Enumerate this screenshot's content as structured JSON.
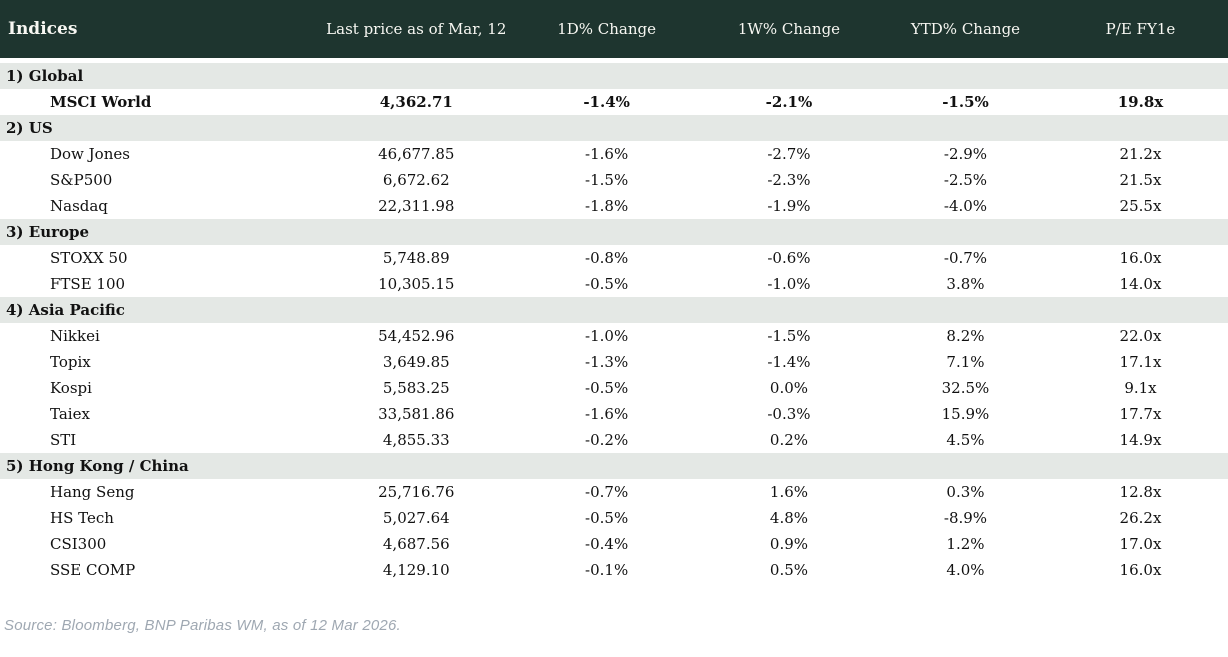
{
  "header": {
    "title": "Indices",
    "columns": [
      "Last price as of Mar, 12",
      "1D% Change",
      "1W% Change",
      "YTD% Change",
      "P/E FY1e"
    ]
  },
  "sections": [
    {
      "label": "1) Global",
      "rows": [
        {
          "name": "MSCI World",
          "bold": true,
          "price": "4,362.71",
          "d1": {
            "v": "-1.4%",
            "c": "neg"
          },
          "w1": {
            "v": "-2.1%",
            "c": "neg"
          },
          "ytd": {
            "v": "-1.5%",
            "c": "neg"
          },
          "pe": "19.8x"
        }
      ]
    },
    {
      "label": "2) US",
      "rows": [
        {
          "name": "Dow Jones",
          "bold": false,
          "price": "46,677.85",
          "d1": {
            "v": "-1.6%",
            "c": "neg"
          },
          "w1": {
            "v": "-2.7%",
            "c": "neg"
          },
          "ytd": {
            "v": "-2.9%",
            "c": "neg"
          },
          "pe": "21.2x"
        },
        {
          "name": "S&P500",
          "bold": false,
          "price": "6,672.62",
          "d1": {
            "v": "-1.5%",
            "c": "neg"
          },
          "w1": {
            "v": "-2.3%",
            "c": "neg"
          },
          "ytd": {
            "v": "-2.5%",
            "c": "neg"
          },
          "pe": "21.5x"
        },
        {
          "name": "Nasdaq",
          "bold": false,
          "price": "22,311.98",
          "d1": {
            "v": "-1.8%",
            "c": "neg"
          },
          "w1": {
            "v": "-1.9%",
            "c": "neg"
          },
          "ytd": {
            "v": "-4.0%",
            "c": "neg"
          },
          "pe": "25.5x"
        }
      ]
    },
    {
      "label": "3) Europe",
      "rows": [
        {
          "name": "STOXX 50",
          "bold": false,
          "price": "5,748.89",
          "d1": {
            "v": "-0.8%",
            "c": "neg"
          },
          "w1": {
            "v": "-0.6%",
            "c": "neg"
          },
          "ytd": {
            "v": "-0.7%",
            "c": "neg"
          },
          "pe": "16.0x"
        },
        {
          "name": "FTSE 100",
          "bold": false,
          "price": "10,305.15",
          "d1": {
            "v": "-0.5%",
            "c": "neg"
          },
          "w1": {
            "v": "-1.0%",
            "c": "neg"
          },
          "ytd": {
            "v": "3.8%",
            "c": "pos"
          },
          "pe": "14.0x"
        }
      ]
    },
    {
      "label": "4) Asia Pacific",
      "rows": [
        {
          "name": "Nikkei",
          "bold": false,
          "price": "54,452.96",
          "d1": {
            "v": "-1.0%",
            "c": "neg"
          },
          "w1": {
            "v": "-1.5%",
            "c": "neg"
          },
          "ytd": {
            "v": "8.2%",
            "c": "pos"
          },
          "pe": "22.0x"
        },
        {
          "name": "Topix",
          "bold": false,
          "price": "3,649.85",
          "d1": {
            "v": "-1.3%",
            "c": "neg"
          },
          "w1": {
            "v": "-1.4%",
            "c": "neg"
          },
          "ytd": {
            "v": "7.1%",
            "c": "pos"
          },
          "pe": "17.1x"
        },
        {
          "name": "Kospi",
          "bold": false,
          "price": "5,583.25",
          "d1": {
            "v": "-0.5%",
            "c": "neg"
          },
          "w1": {
            "v": "0.0%",
            "c": "neg"
          },
          "ytd": {
            "v": "32.5%",
            "c": "pos"
          },
          "pe": "9.1x"
        },
        {
          "name": "Taiex",
          "bold": false,
          "price": "33,581.86",
          "d1": {
            "v": "-1.6%",
            "c": "neg"
          },
          "w1": {
            "v": "-0.3%",
            "c": "neg"
          },
          "ytd": {
            "v": "15.9%",
            "c": "pos"
          },
          "pe": "17.7x"
        },
        {
          "name": "STI",
          "bold": false,
          "price": "4,855.33",
          "d1": {
            "v": "-0.2%",
            "c": "neg"
          },
          "w1": {
            "v": "0.2%",
            "c": "pos"
          },
          "ytd": {
            "v": "4.5%",
            "c": "pos"
          },
          "pe": "14.9x"
        }
      ]
    },
    {
      "label": "5) Hong Kong / China",
      "rows": [
        {
          "name": "Hang Seng",
          "bold": false,
          "price": "25,716.76",
          "d1": {
            "v": "-0.7%",
            "c": "neg"
          },
          "w1": {
            "v": "1.6%",
            "c": "pos"
          },
          "ytd": {
            "v": "0.3%",
            "c": "pos"
          },
          "pe": "12.8x"
        },
        {
          "name": "HS Tech",
          "bold": false,
          "price": "5,027.64",
          "d1": {
            "v": "-0.5%",
            "c": "neg"
          },
          "w1": {
            "v": "4.8%",
            "c": "pos"
          },
          "ytd": {
            "v": "-8.9%",
            "c": "neg"
          },
          "pe": "26.2x"
        },
        {
          "name": "CSI300",
          "bold": false,
          "price": "4,687.56",
          "d1": {
            "v": "-0.4%",
            "c": "neg"
          },
          "w1": {
            "v": "0.9%",
            "c": "pos"
          },
          "ytd": {
            "v": "1.2%",
            "c": "pos"
          },
          "pe": "17.0x"
        },
        {
          "name": "SSE COMP",
          "bold": false,
          "price": "4,129.10",
          "d1": {
            "v": "-0.1%",
            "c": "neg"
          },
          "w1": {
            "v": "0.5%",
            "c": "pos"
          },
          "ytd": {
            "v": "4.0%",
            "c": "pos"
          },
          "pe": "16.0x"
        }
      ]
    }
  ],
  "footer": {
    "source": "Source: Bloomberg, BNP Paribas WM, as of 12 Mar 2026."
  },
  "colors": {
    "header_bg": "#1e352f",
    "header_text": "#f7f7f2",
    "section_bg": "#e4e8e5",
    "negative": "#c00000",
    "positive": "#009640",
    "text": "#111111",
    "source_text": "#9fa8b2"
  }
}
